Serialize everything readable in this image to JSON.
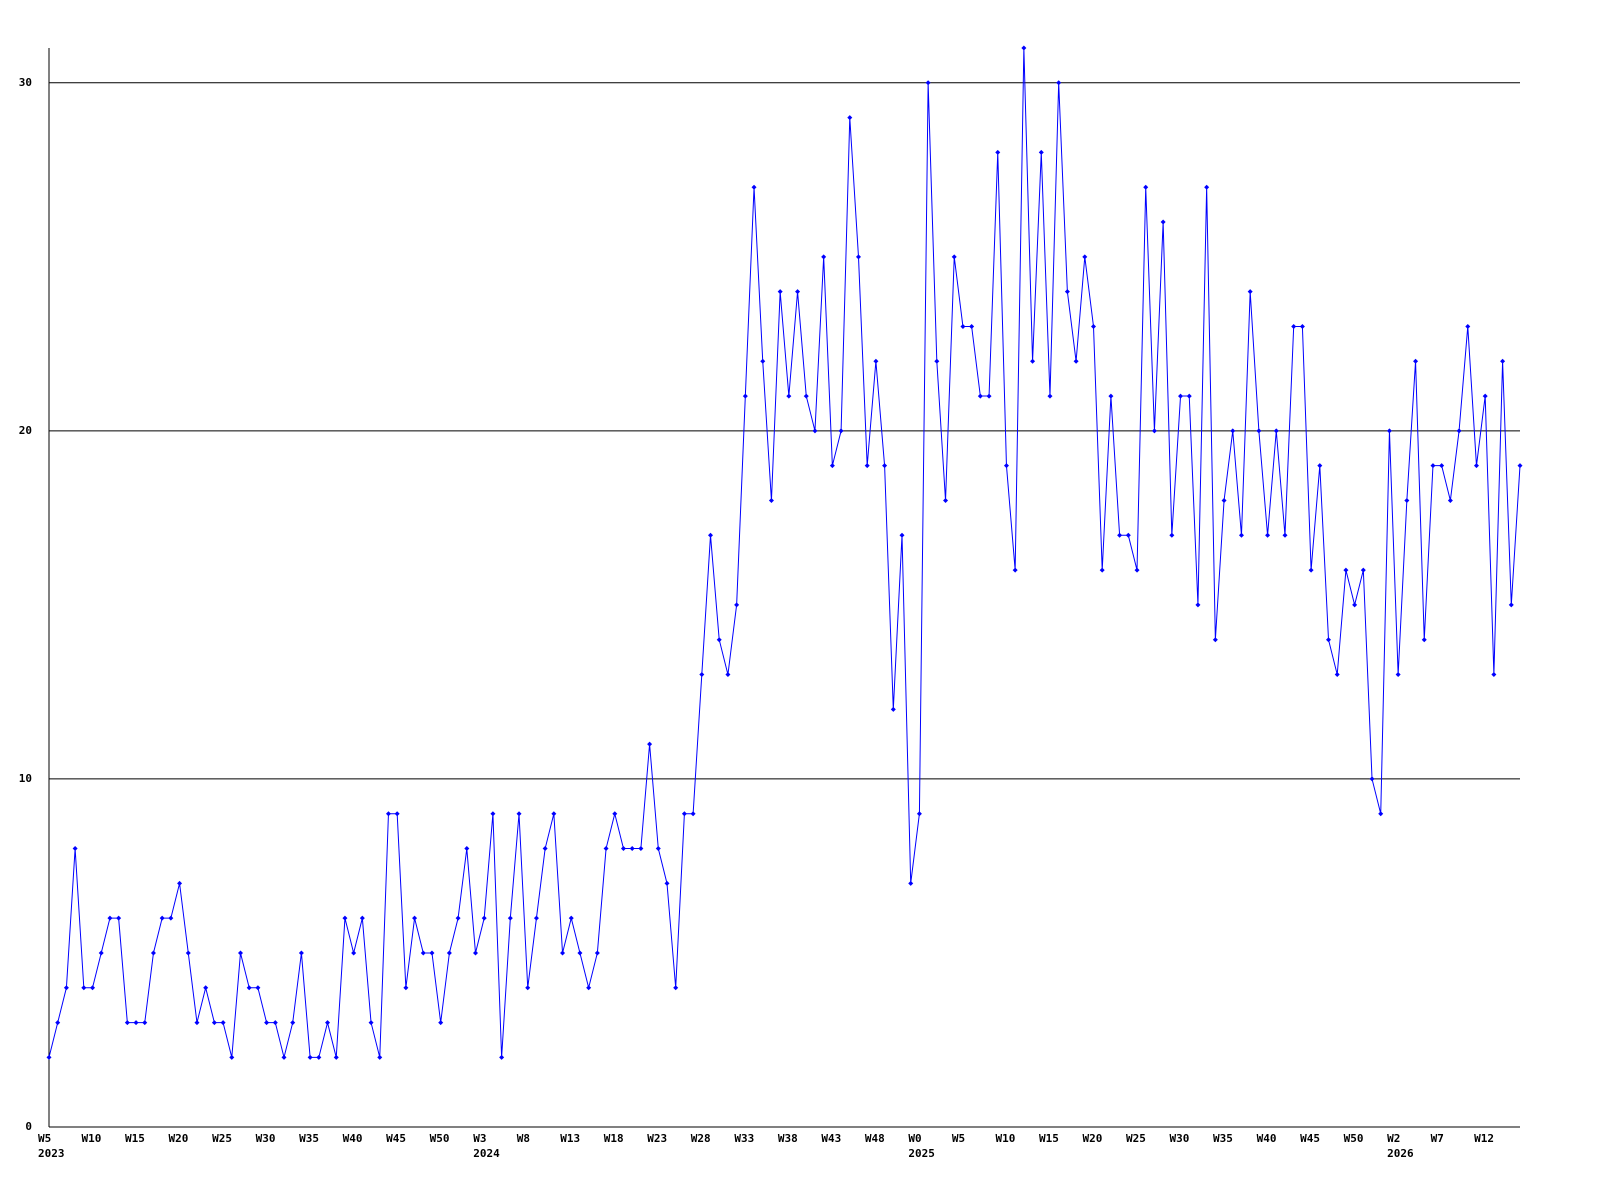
{
  "chart_data": {
    "type": "line",
    "color": "#0000ff",
    "categories": [
      "W5",
      null,
      null,
      null,
      null,
      "W10",
      null,
      null,
      null,
      null,
      "W15",
      null,
      null,
      null,
      null,
      "W20",
      null,
      null,
      null,
      null,
      "W25",
      null,
      null,
      null,
      null,
      "W30",
      null,
      null,
      null,
      null,
      "W35",
      null,
      null,
      null,
      null,
      "W40",
      null,
      null,
      null,
      null,
      "W45",
      null,
      null,
      null,
      null,
      "W50",
      null,
      null,
      null,
      null,
      "W3",
      null,
      null,
      null,
      null,
      "W8",
      null,
      null,
      null,
      null,
      "W13",
      null,
      null,
      null,
      null,
      "W18",
      null,
      null,
      null,
      null,
      "W23",
      null,
      null,
      null,
      null,
      "W28",
      null,
      null,
      null,
      null,
      "W33",
      null,
      null,
      null,
      null,
      "W38",
      null,
      null,
      null,
      null,
      "W43",
      null,
      null,
      null,
      null,
      "W48",
      null,
      null,
      null,
      null,
      "W0",
      null,
      null,
      null,
      null,
      "W5",
      null,
      null,
      null,
      null,
      "W10",
      null,
      null,
      null,
      null,
      "W15",
      null,
      null,
      null,
      null,
      "W20",
      null,
      null,
      null,
      null,
      "W25",
      null,
      null,
      null,
      null,
      "W30",
      null,
      null,
      null,
      null,
      "W35",
      null,
      null,
      null,
      null,
      "W40",
      null,
      null,
      null,
      null,
      "W45",
      null,
      null,
      null,
      null,
      "W50",
      null,
      null,
      null,
      null,
      "W2",
      null,
      null,
      null,
      null,
      "W7",
      null,
      null,
      null,
      null,
      "W12",
      null,
      null,
      null,
      null
    ],
    "x_sublabels": [
      "2023",
      null,
      null,
      null,
      null,
      null,
      null,
      null,
      null,
      null,
      null,
      null,
      null,
      null,
      null,
      null,
      null,
      null,
      null,
      null,
      null,
      null,
      null,
      null,
      null,
      null,
      null,
      null,
      null,
      null,
      null,
      null,
      null,
      null,
      null,
      null,
      null,
      null,
      null,
      null,
      null,
      null,
      null,
      null,
      null,
      null,
      null,
      null,
      null,
      null,
      "2024",
      null,
      null,
      null,
      null,
      null,
      null,
      null,
      null,
      null,
      null,
      null,
      null,
      null,
      null,
      null,
      null,
      null,
      null,
      null,
      null,
      null,
      null,
      null,
      null,
      null,
      null,
      null,
      null,
      null,
      null,
      null,
      null,
      null,
      null,
      null,
      null,
      null,
      null,
      null,
      null,
      null,
      null,
      null,
      null,
      null,
      null,
      null,
      null,
      null,
      "2025",
      null,
      null,
      null,
      null,
      null,
      null,
      null,
      null,
      null,
      null,
      null,
      null,
      null,
      null,
      null,
      null,
      null,
      null,
      null,
      null,
      null,
      null,
      null,
      null,
      null,
      null,
      null,
      null,
      null,
      null,
      null,
      null,
      null,
      null,
      null,
      null,
      null,
      null,
      null,
      null,
      null,
      null,
      null,
      null,
      null,
      null,
      null,
      null,
      null,
      null,
      null,
      null,
      null,
      null,
      "2026",
      null,
      null,
      null,
      null,
      null,
      null,
      null,
      null,
      null,
      null,
      null,
      null,
      null,
      null
    ],
    "values": [
      2,
      3,
      4,
      8,
      4,
      4,
      5,
      6,
      6,
      3,
      3,
      3,
      5,
      6,
      6,
      7,
      5,
      3,
      4,
      3,
      3,
      2,
      5,
      4,
      4,
      3,
      3,
      2,
      3,
      5,
      2,
      2,
      3,
      2,
      6,
      5,
      6,
      3,
      2,
      9,
      9,
      4,
      6,
      5,
      5,
      3,
      5,
      6,
      8,
      5,
      6,
      9,
      2,
      6,
      9,
      4,
      6,
      8,
      9,
      5,
      6,
      5,
      4,
      5,
      8,
      9,
      8,
      8,
      8,
      11,
      8,
      7,
      4,
      9,
      9,
      13,
      17,
      14,
      13,
      15,
      21,
      27,
      22,
      18,
      24,
      21,
      24,
      21,
      20,
      25,
      19,
      20,
      29,
      25,
      19,
      22,
      19,
      12,
      17,
      7,
      9,
      30,
      22,
      18,
      25,
      23,
      23,
      21,
      21,
      28,
      19,
      16,
      31,
      22,
      28,
      21,
      30,
      24,
      22,
      25,
      23,
      16,
      21,
      17,
      17,
      16,
      27,
      20,
      26,
      17,
      21,
      21,
      15,
      27,
      14,
      18,
      20,
      17,
      24,
      20,
      17,
      20,
      17,
      23,
      23,
      16,
      19,
      14,
      13,
      16,
      15,
      16,
      10,
      9,
      20,
      13,
      18,
      22,
      14,
      19,
      19,
      18,
      20,
      23,
      19,
      21,
      13,
      22,
      15,
      19
    ],
    "ylim": [
      0,
      31
    ],
    "yticks": [
      0,
      10,
      20,
      30
    ],
    "grid": true
  }
}
